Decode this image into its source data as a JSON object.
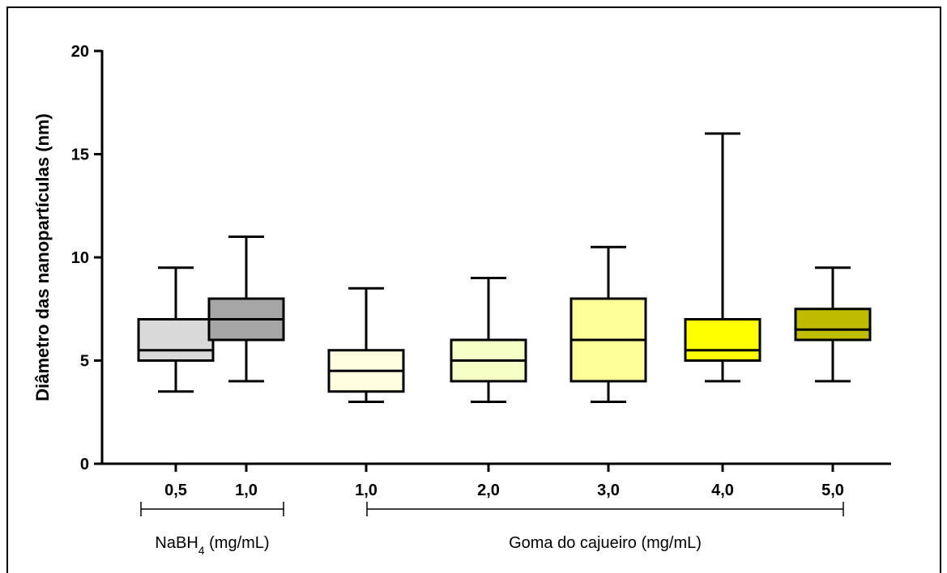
{
  "chart_data": {
    "type": "boxplot",
    "ylabel": "Diâmetro das nanopartículas (nm)",
    "xlabel": "",
    "ylim": [
      0,
      20
    ],
    "yticks": [
      0,
      5,
      10,
      15,
      20
    ],
    "grid": false,
    "categories": [
      "0,5",
      "1,0",
      "1,0",
      "2,0",
      "3,0",
      "4,0",
      "5,0"
    ],
    "boxes": [
      {
        "label": "0,5",
        "min": 3.5,
        "q1": 5.0,
        "median": 5.5,
        "q3": 7.0,
        "max": 9.5,
        "color": "#d9d9d9"
      },
      {
        "label": "1,0",
        "min": 4.0,
        "q1": 6.0,
        "median": 7.0,
        "q3": 8.0,
        "max": 11.0,
        "color": "#a6a6a6"
      },
      {
        "label": "1,0",
        "min": 3.0,
        "q1": 3.5,
        "median": 4.5,
        "q3": 5.5,
        "max": 8.5,
        "color": "#fffde0"
      },
      {
        "label": "2,0",
        "min": 3.0,
        "q1": 4.0,
        "median": 5.0,
        "q3": 6.0,
        "max": 9.0,
        "color": "#f6ffc6"
      },
      {
        "label": "3,0",
        "min": 3.0,
        "q1": 4.0,
        "median": 6.0,
        "q3": 8.0,
        "max": 10.5,
        "color": "#ffff99"
      },
      {
        "label": "4,0",
        "min": 4.0,
        "q1": 5.0,
        "median": 5.5,
        "q3": 7.0,
        "max": 16.0,
        "color": "#ffff00"
      },
      {
        "label": "5,0",
        "min": 4.0,
        "q1": 6.0,
        "median": 6.5,
        "q3": 7.5,
        "max": 9.5,
        "color": "#bfbc00"
      }
    ],
    "groups": [
      {
        "label_main": "NaBH",
        "label_sub": "4",
        "label_rest": " (mg/mL)",
        "from": 0,
        "to": 1
      },
      {
        "label_main": "Goma do cajueiro (mg/mL)",
        "label_sub": "",
        "label_rest": "",
        "from": 2,
        "to": 6
      }
    ]
  }
}
